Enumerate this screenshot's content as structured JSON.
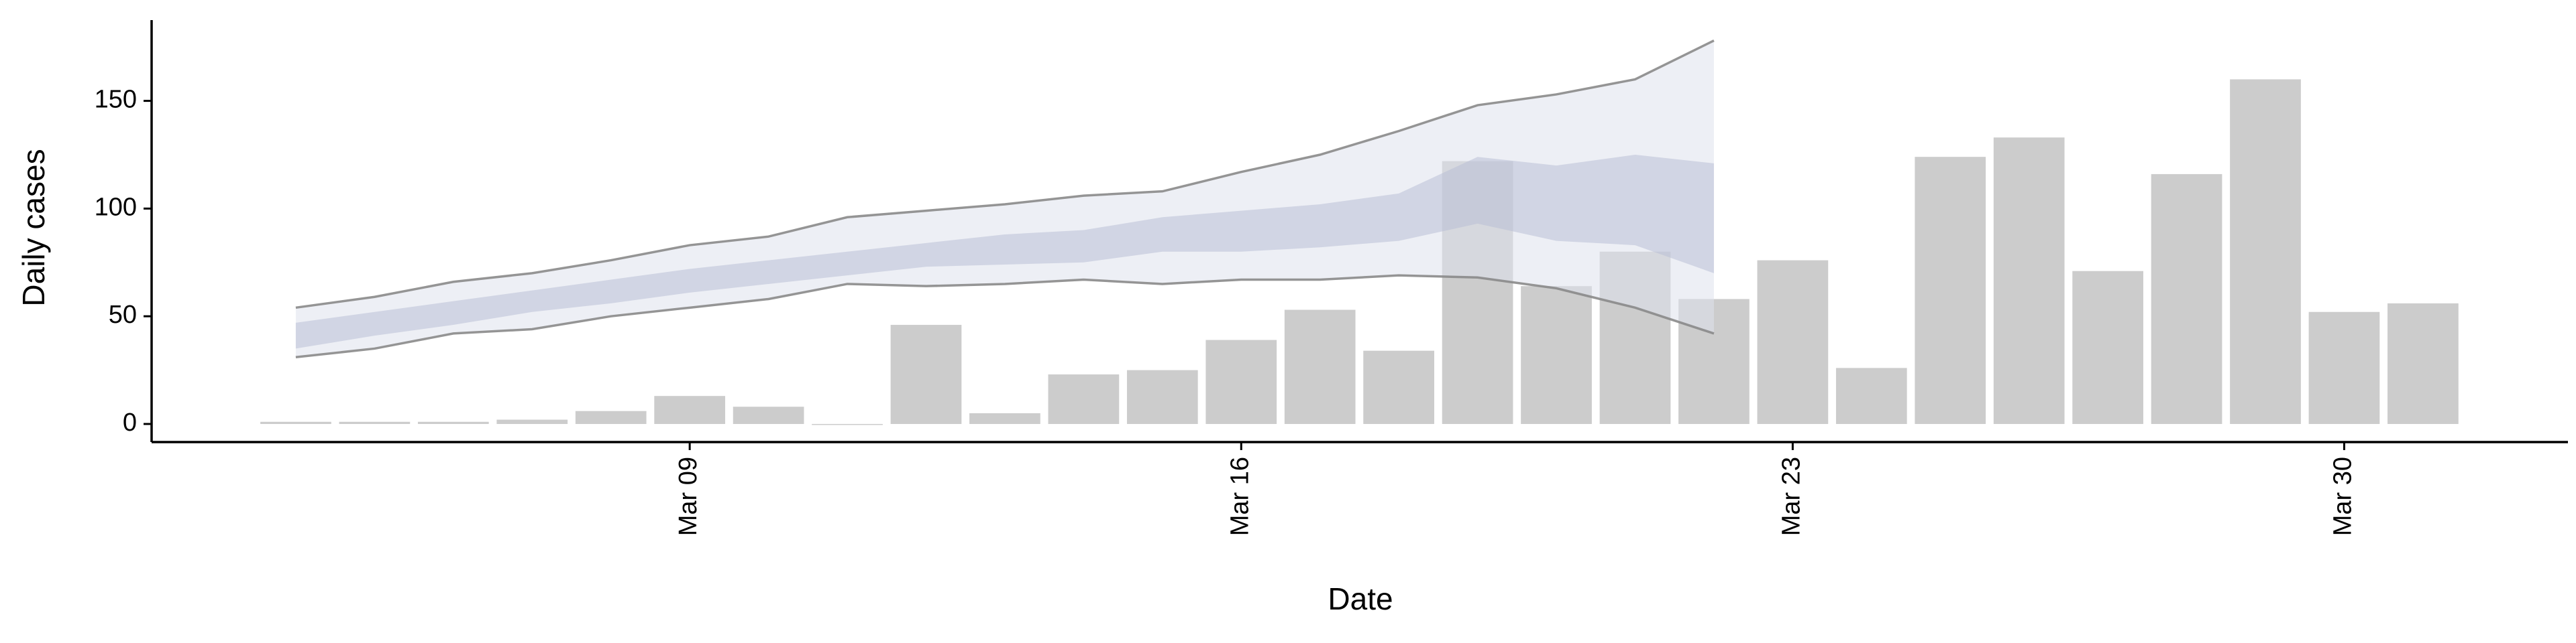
{
  "chart_data": {
    "type": "bar",
    "xlabel": "Date",
    "ylabel": "Daily cases",
    "xlim": [
      2.17,
      32.84
    ],
    "ylim": [
      -8.4,
      187.5
    ],
    "xticks": [
      {
        "value": 9,
        "label": "Mar 09"
      },
      {
        "value": 16,
        "label": "Mar 16"
      },
      {
        "value": 23,
        "label": "Mar 23"
      },
      {
        "value": 30,
        "label": "Mar 30"
      }
    ],
    "yticks": [
      0,
      50,
      100,
      150
    ],
    "layers": [
      {
        "type": "bar",
        "color": "#cccccc",
        "x": [
          4,
          5,
          6,
          7,
          8,
          9,
          10,
          11,
          12,
          13,
          14,
          15,
          16,
          17,
          18,
          19,
          20,
          21,
          22,
          23,
          24,
          25,
          26,
          27,
          28,
          29,
          30,
          31
        ],
        "values": [
          1,
          1,
          1,
          2,
          6,
          13,
          8,
          0,
          46,
          5,
          23,
          25,
          39,
          53,
          34,
          122,
          64,
          80,
          58,
          76,
          26,
          124,
          133,
          71,
          116,
          160,
          52,
          56
        ]
      },
      {
        "type": "ribbon",
        "color": "#dfe1ec",
        "outline": "#8a8a8a",
        "x": [
          4,
          5,
          6,
          7,
          8,
          9,
          10,
          11,
          12,
          13,
          14,
          15,
          16,
          17,
          18,
          19,
          20,
          21,
          22
        ],
        "lower": [
          31,
          35,
          42,
          44,
          50,
          54,
          58,
          65,
          64,
          65,
          67,
          65,
          67,
          67,
          69,
          68,
          63,
          54,
          42
        ],
        "upper": [
          54,
          59,
          66,
          70,
          76,
          83,
          87,
          96,
          99,
          102,
          106,
          108,
          117,
          125,
          136,
          148,
          153,
          160,
          178
        ]
      },
      {
        "type": "ribbon",
        "color": "#b9bfd6",
        "x": [
          4,
          5,
          6,
          7,
          8,
          9,
          10,
          11,
          12,
          13,
          14,
          15,
          16,
          17,
          18,
          19,
          20,
          21,
          22
        ],
        "lower": [
          35,
          41,
          46,
          52,
          56,
          61,
          65,
          69,
          73,
          74,
          75,
          80,
          80,
          82,
          85,
          93,
          85,
          83,
          70
        ],
        "upper": [
          47,
          52,
          57,
          62,
          67,
          72,
          76,
          80,
          84,
          88,
          90,
          96,
          99,
          102,
          107,
          124,
          120,
          125,
          121
        ]
      }
    ]
  }
}
